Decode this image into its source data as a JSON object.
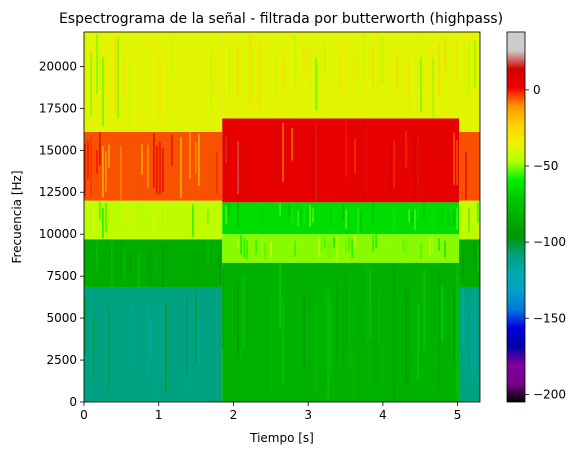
{
  "chart_data": {
    "type": "heatmap",
    "title": "Espectrograma de la señal - filtrada por butterworth (highpass)",
    "xlabel": "Tiempo [s]",
    "ylabel": "Frecuencia [Hz]",
    "xlim": [
      0,
      5.3
    ],
    "ylim": [
      0,
      22050
    ],
    "xticks": [
      0,
      1,
      2,
      3,
      4,
      5
    ],
    "yticks": [
      0,
      2500,
      5000,
      7500,
      10000,
      12500,
      15000,
      17500,
      20000
    ],
    "colorbar": {
      "colormap": "nipy_spectral",
      "range": [
        -205,
        38
      ],
      "ticks": [
        0,
        -50,
        -100,
        -150,
        -200
      ]
    },
    "segments": [
      {
        "t_start": 0.0,
        "t_end": 1.85,
        "description_bands": [
          {
            "f_from": 0,
            "f_to": 6800,
            "level_db": -110
          },
          {
            "f_from": 6800,
            "f_to": 9700,
            "level_db": -85
          },
          {
            "f_from": 9700,
            "f_to": 12000,
            "level_db": -45
          },
          {
            "f_from": 12000,
            "f_to": 16100,
            "level_db": -5
          },
          {
            "f_from": 16100,
            "f_to": 22050,
            "level_db": -38
          }
        ]
      },
      {
        "t_start": 1.85,
        "t_end": 5.02,
        "description_bands": [
          {
            "f_from": 0,
            "f_to": 8300,
            "level_db": -82
          },
          {
            "f_from": 8300,
            "f_to": 10000,
            "level_db": -50
          },
          {
            "f_from": 10000,
            "f_to": 11900,
            "level_db": -65
          },
          {
            "f_from": 11900,
            "f_to": 16900,
            "level_db": 5
          },
          {
            "f_from": 16900,
            "f_to": 22050,
            "level_db": -38
          }
        ]
      },
      {
        "t_start": 5.02,
        "t_end": 5.3,
        "description_bands": [
          {
            "f_from": 0,
            "f_to": 6800,
            "level_db": -110
          },
          {
            "f_from": 6800,
            "f_to": 9700,
            "level_db": -85
          },
          {
            "f_from": 9700,
            "f_to": 12000,
            "level_db": -45
          },
          {
            "f_from": 12000,
            "f_to": 16100,
            "level_db": -5
          },
          {
            "f_from": 16100,
            "f_to": 22050,
            "level_db": -38
          }
        ]
      }
    ]
  }
}
